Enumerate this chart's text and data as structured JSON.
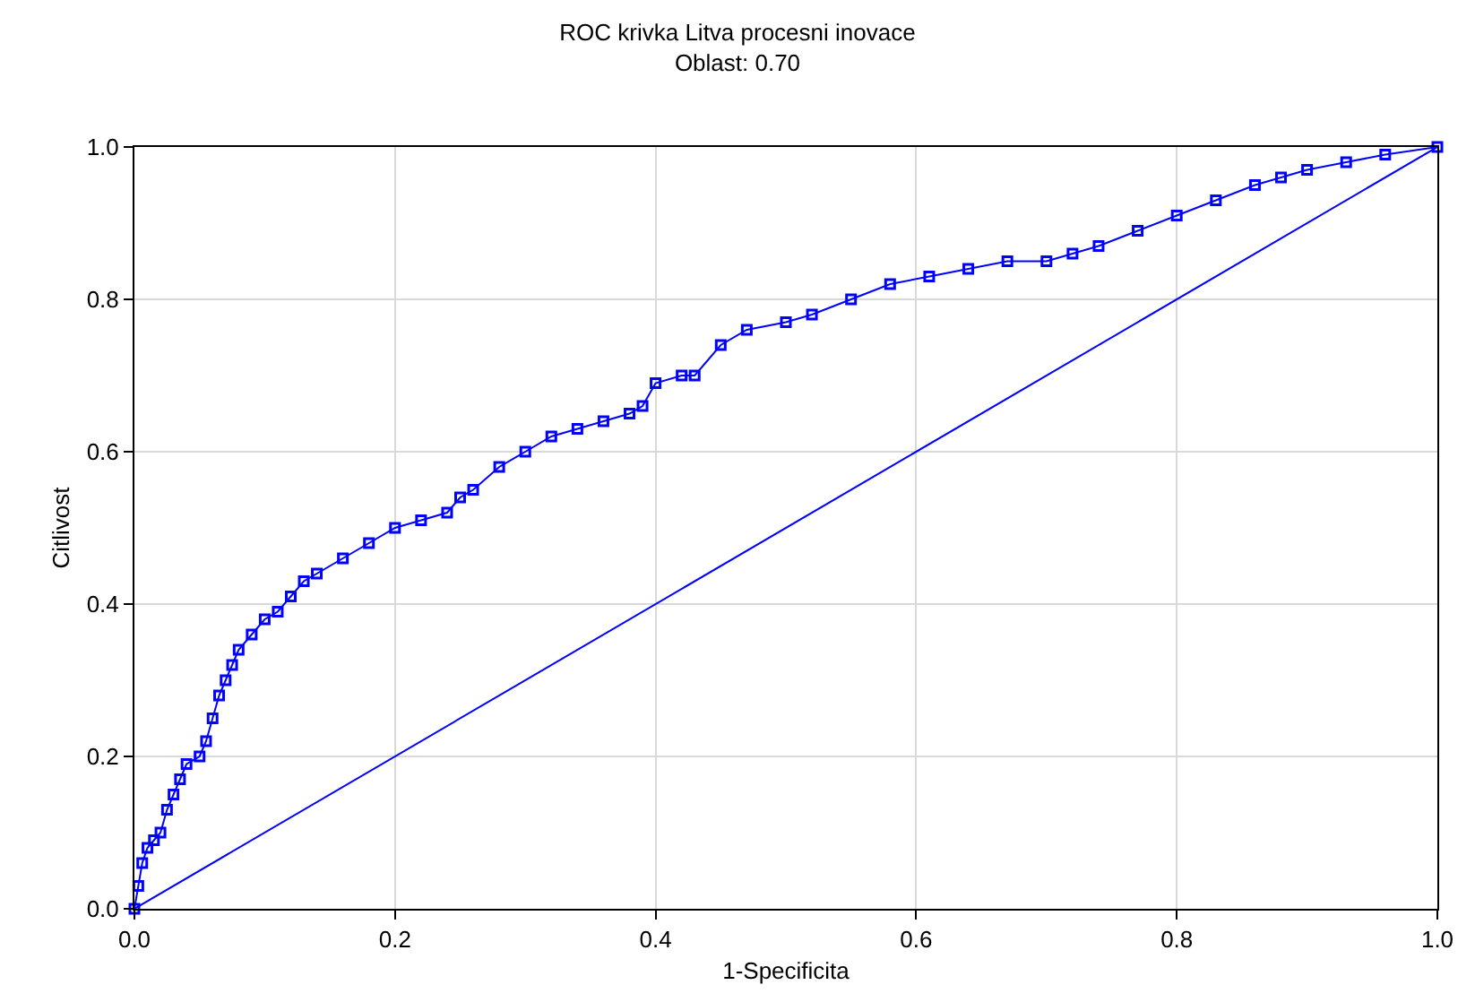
{
  "chart_data": {
    "type": "line",
    "title": "ROC krivka Litva procesni inovace",
    "subtitle": "Oblast: 0.70",
    "xlabel": "1-Specificita",
    "ylabel": "Citlivost",
    "xlim": [
      0,
      1
    ],
    "ylim": [
      0,
      1
    ],
    "xticks": [
      {
        "value": 0,
        "label": "0.0"
      },
      0.2,
      0.4,
      0.6,
      0.8,
      {
        "value": 1,
        "label": "1.0"
      }
    ],
    "yticks": [
      {
        "value": 0,
        "label": "0.0"
      },
      0.2,
      0.4,
      0.6,
      0.8,
      {
        "value": 1,
        "label": "1.0"
      }
    ],
    "grid": true,
    "series": [
      {
        "color": "#0000ff",
        "marker": "square",
        "x": [
          0,
          0.003,
          0.006,
          0.01,
          0.015,
          0.02,
          0.025,
          0.03,
          0.035,
          0.04,
          0.05,
          0.055,
          0.06,
          0.065,
          0.07,
          0.075,
          0.08,
          0.09,
          0.1,
          0.11,
          0.12,
          0.13,
          0.14,
          0.16,
          0.18,
          0.2,
          0.22,
          0.24,
          0.25,
          0.26,
          0.28,
          0.3,
          0.32,
          0.34,
          0.36,
          0.38,
          0.39,
          0.4,
          0.42,
          0.43,
          0.45,
          0.47,
          0.5,
          0.52,
          0.55,
          0.58,
          0.61,
          0.64,
          0.67,
          0.7,
          0.72,
          0.74,
          0.77,
          0.8,
          0.83,
          0.86,
          0.88,
          0.9,
          0.93,
          0.96,
          1
        ],
        "values": [
          0,
          0.03,
          0.06,
          0.08,
          0.09,
          0.1,
          0.13,
          0.15,
          0.17,
          0.19,
          0.2,
          0.22,
          0.25,
          0.28,
          0.3,
          0.32,
          0.34,
          0.36,
          0.38,
          0.39,
          0.41,
          0.43,
          0.44,
          0.46,
          0.48,
          0.5,
          0.51,
          0.52,
          0.54,
          0.55,
          0.58,
          0.6,
          0.62,
          0.63,
          0.64,
          0.65,
          0.66,
          0.69,
          0.7,
          0.7,
          0.74,
          0.76,
          0.77,
          0.78,
          0.8,
          0.82,
          0.83,
          0.84,
          0.85,
          0.85,
          0.86,
          0.87,
          0.89,
          0.91,
          0.93,
          0.95,
          0.96,
          0.97,
          0.98,
          0.99,
          1
        ]
      },
      {
        "color": "#0000ff",
        "marker": "none",
        "x": [
          0,
          1
        ],
        "values": [
          0,
          1
        ]
      }
    ]
  }
}
